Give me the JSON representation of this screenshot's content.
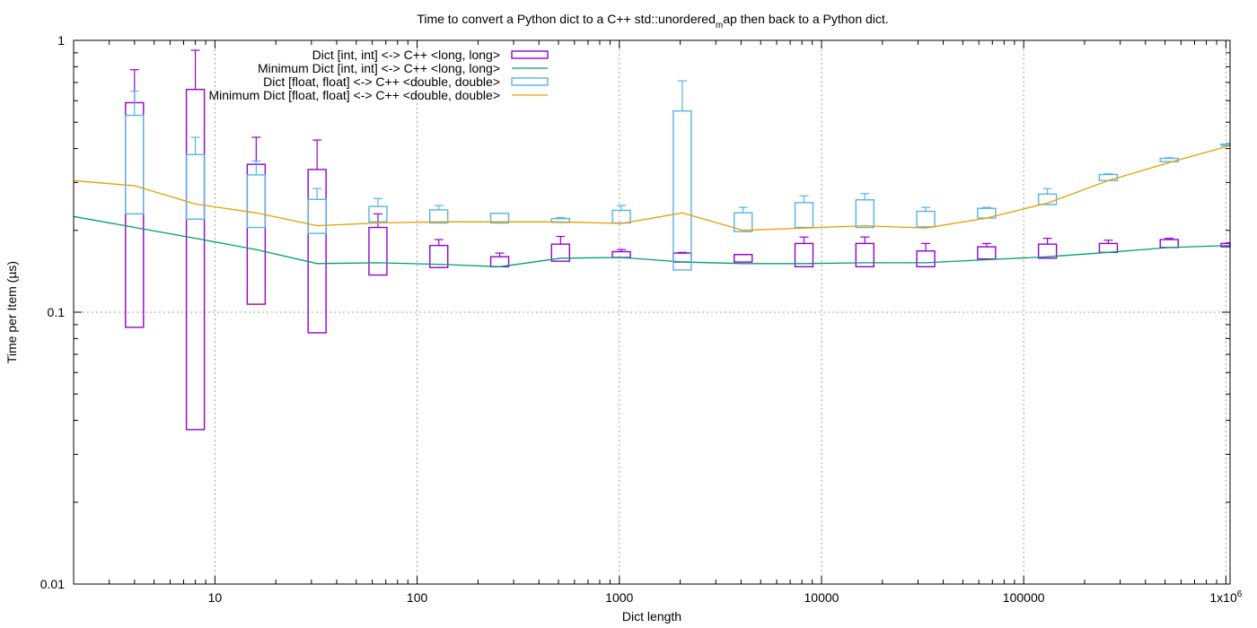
{
  "chart_data": {
    "type": "box-log-log",
    "title": {
      "pre": "Time to convert a Python dict to a C++ std::unordered",
      "sub": "m",
      "post": "ap then back to a Python dict."
    },
    "xlabel": "Dict length",
    "ylabel": "Time per Item (µs)",
    "x_scale": "log",
    "y_scale": "log",
    "xlim": [
      2,
      1048576
    ],
    "ylim": [
      0.01,
      1
    ],
    "x_ticks": [
      {
        "value": 10,
        "label": "10"
      },
      {
        "value": 100,
        "label": "100"
      },
      {
        "value": 1000,
        "label": "1000"
      },
      {
        "value": 10000,
        "label": "10000"
      },
      {
        "value": 100000,
        "label": "100000"
      },
      {
        "value": 1000000,
        "label": "1x10",
        "sup": "6"
      }
    ],
    "y_ticks": [
      {
        "value": 1,
        "label": "1"
      },
      {
        "value": 0.1,
        "label": "0.1"
      },
      {
        "value": 0.01,
        "label": "0.01"
      }
    ],
    "grid": true,
    "legend": "top-left",
    "series": [
      {
        "name": "Dict [int, int] <-> C++ <long, long>",
        "kind": "box",
        "color": "#9400d3",
        "data": [
          {
            "x": 4,
            "whisker_low": 0.088,
            "box_low": 0.088,
            "box_high": 0.59,
            "whisker_high": 0.78
          },
          {
            "x": 8,
            "whisker_low": 0.037,
            "box_low": 0.037,
            "box_high": 0.66,
            "whisker_high": 0.92
          },
          {
            "x": 16,
            "whisker_low": 0.107,
            "box_low": 0.107,
            "box_high": 0.35,
            "whisker_high": 0.44
          },
          {
            "x": 32,
            "whisker_low": 0.084,
            "box_low": 0.084,
            "box_high": 0.335,
            "whisker_high": 0.43
          },
          {
            "x": 64,
            "whisker_low": 0.137,
            "box_low": 0.137,
            "box_high": 0.205,
            "whisker_high": 0.23
          },
          {
            "x": 128,
            "whisker_low": 0.146,
            "box_low": 0.146,
            "box_high": 0.176,
            "whisker_high": 0.185
          },
          {
            "x": 256,
            "whisker_low": 0.147,
            "box_low": 0.147,
            "box_high": 0.16,
            "whisker_high": 0.165
          },
          {
            "x": 512,
            "whisker_low": 0.154,
            "box_low": 0.154,
            "box_high": 0.178,
            "whisker_high": 0.19
          },
          {
            "x": 1024,
            "whisker_low": 0.159,
            "box_low": 0.159,
            "box_high": 0.167,
            "whisker_high": 0.17
          },
          {
            "x": 2048,
            "whisker_low": 0.153,
            "box_low": 0.153,
            "box_high": 0.165,
            "whisker_high": 0.166
          },
          {
            "x": 4096,
            "whisker_low": 0.153,
            "box_low": 0.153,
            "box_high": 0.163,
            "whisker_high": 0.163
          },
          {
            "x": 8192,
            "whisker_low": 0.147,
            "box_low": 0.147,
            "box_high": 0.179,
            "whisker_high": 0.189
          },
          {
            "x": 16384,
            "whisker_low": 0.147,
            "box_low": 0.147,
            "box_high": 0.179,
            "whisker_high": 0.189
          },
          {
            "x": 32768,
            "whisker_low": 0.147,
            "box_low": 0.147,
            "box_high": 0.168,
            "whisker_high": 0.179
          },
          {
            "x": 65536,
            "whisker_low": 0.157,
            "box_low": 0.157,
            "box_high": 0.174,
            "whisker_high": 0.179
          },
          {
            "x": 131072,
            "whisker_low": 0.158,
            "box_low": 0.158,
            "box_high": 0.178,
            "whisker_high": 0.187
          },
          {
            "x": 262144,
            "whisker_low": 0.166,
            "box_low": 0.166,
            "box_high": 0.179,
            "whisker_high": 0.184
          },
          {
            "x": 524288,
            "whisker_low": 0.173,
            "box_low": 0.173,
            "box_high": 0.185,
            "whisker_high": 0.187
          },
          {
            "x": 1048576,
            "whisker_low": 0.174,
            "box_low": 0.174,
            "box_high": 0.179,
            "whisker_high": 0.18
          }
        ]
      },
      {
        "name": "Minimum Dict [int, int] <-> C++ <long, long>",
        "kind": "line",
        "color": "#009e73",
        "x": [
          2,
          4,
          8,
          16,
          32,
          64,
          128,
          256,
          512,
          1024,
          2048,
          4096,
          8192,
          16384,
          32768,
          65536,
          131072,
          262144,
          524288,
          1048576
        ],
        "y": [
          0.225,
          0.205,
          0.187,
          0.17,
          0.151,
          0.152,
          0.15,
          0.147,
          0.158,
          0.159,
          0.153,
          0.151,
          0.151,
          0.152,
          0.152,
          0.156,
          0.16,
          0.166,
          0.173,
          0.176
        ]
      },
      {
        "name": "Dict [float, float] <-> C++ <double, double>",
        "kind": "box",
        "color": "#56b4e9",
        "data": [
          {
            "x": 4,
            "whisker_low": 0.23,
            "box_low": 0.23,
            "box_high": 0.53,
            "whisker_high": 0.65
          },
          {
            "x": 8,
            "whisker_low": 0.22,
            "box_low": 0.22,
            "box_high": 0.38,
            "whisker_high": 0.44
          },
          {
            "x": 16,
            "whisker_low": 0.205,
            "box_low": 0.205,
            "box_high": 0.32,
            "whisker_high": 0.36
          },
          {
            "x": 32,
            "whisker_low": 0.195,
            "box_low": 0.195,
            "box_high": 0.26,
            "whisker_high": 0.285
          },
          {
            "x": 64,
            "whisker_low": 0.215,
            "box_low": 0.215,
            "box_high": 0.245,
            "whisker_high": 0.262
          },
          {
            "x": 128,
            "whisker_low": 0.213,
            "box_low": 0.213,
            "box_high": 0.238,
            "whisker_high": 0.247
          },
          {
            "x": 256,
            "whisker_low": 0.213,
            "box_low": 0.213,
            "box_high": 0.231,
            "whisker_high": 0.231
          },
          {
            "x": 512,
            "whisker_low": 0.214,
            "box_low": 0.214,
            "box_high": 0.221,
            "whisker_high": 0.223
          },
          {
            "x": 1024,
            "whisker_low": 0.213,
            "box_low": 0.213,
            "box_high": 0.237,
            "whisker_high": 0.247
          },
          {
            "x": 2048,
            "whisker_low": 0.143,
            "box_low": 0.143,
            "box_high": 0.55,
            "whisker_high": 0.71
          },
          {
            "x": 4096,
            "whisker_low": 0.198,
            "box_low": 0.198,
            "box_high": 0.232,
            "whisker_high": 0.243
          },
          {
            "x": 8192,
            "whisker_low": 0.205,
            "box_low": 0.205,
            "box_high": 0.253,
            "whisker_high": 0.268
          },
          {
            "x": 16384,
            "whisker_low": 0.205,
            "box_low": 0.205,
            "box_high": 0.259,
            "whisker_high": 0.273
          },
          {
            "x": 32768,
            "whisker_low": 0.206,
            "box_low": 0.206,
            "box_high": 0.235,
            "whisker_high": 0.243
          },
          {
            "x": 65536,
            "whisker_low": 0.222,
            "box_low": 0.222,
            "box_high": 0.241,
            "whisker_high": 0.243
          },
          {
            "x": 131072,
            "whisker_low": 0.249,
            "box_low": 0.249,
            "box_high": 0.272,
            "whisker_high": 0.285
          },
          {
            "x": 262144,
            "whisker_low": 0.305,
            "box_low": 0.305,
            "box_high": 0.321,
            "whisker_high": 0.323
          },
          {
            "x": 524288,
            "whisker_low": 0.358,
            "box_low": 0.358,
            "box_high": 0.368,
            "whisker_high": 0.37
          },
          {
            "x": 1048576,
            "whisker_low": 0.41,
            "box_low": 0.41,
            "box_high": 0.415,
            "whisker_high": 0.418
          }
        ]
      },
      {
        "name": "Minimum Dict [float, float] <-> C++ <double, double>",
        "kind": "line",
        "color": "#e69f00",
        "x": [
          2,
          4,
          8,
          16,
          32,
          64,
          128,
          256,
          512,
          1024,
          2048,
          4096,
          8192,
          16384,
          32768,
          65536,
          131072,
          262144,
          524288,
          1048576
        ],
        "y": [
          0.305,
          0.292,
          0.25,
          0.232,
          0.208,
          0.213,
          0.215,
          0.215,
          0.215,
          0.212,
          0.232,
          0.2,
          0.204,
          0.208,
          0.204,
          0.222,
          0.252,
          0.305,
          0.355,
          0.41
        ]
      }
    ]
  }
}
